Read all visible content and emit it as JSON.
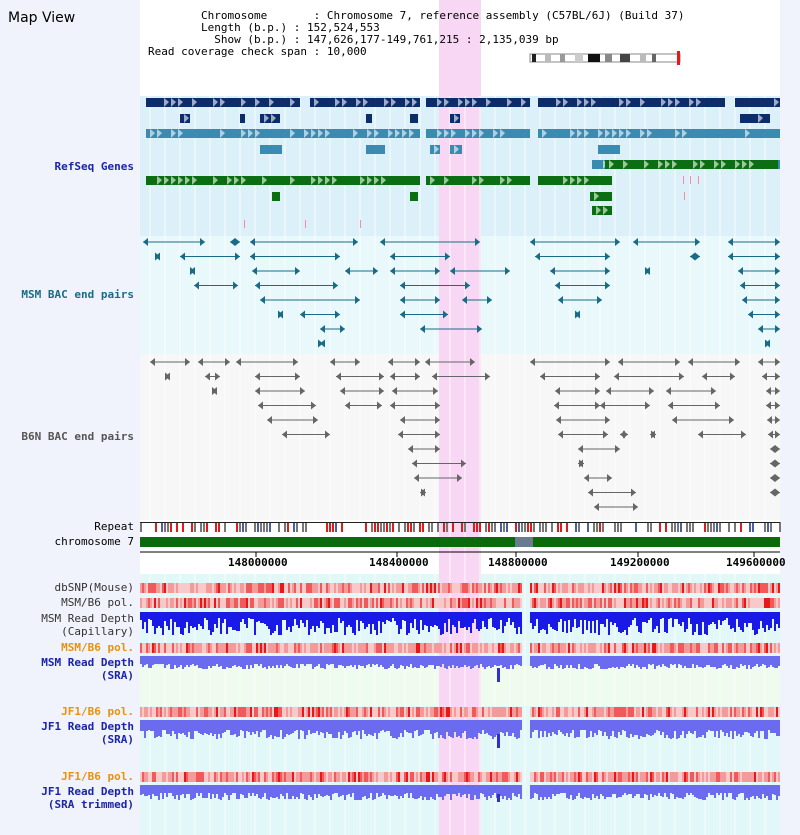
{
  "title": "Map View",
  "info": {
    "chromosome_label": "Chromosome",
    "chromosome_value": "Chromosome 7, reference assembly (C57BL/6J) (Build 37)",
    "length_label": "Length (b.p.)",
    "length_value": "152,524,553",
    "show_label": "Show (b.p.)",
    "show_value": "147,626,177-149,761,215 : 2,135,039 bp",
    "span_label": "Read coverage check span",
    "span_value": "10,000"
  },
  "tracks": {
    "refseq": "RefSeq Genes",
    "msm_bac": "MSM BAC end pairs",
    "b6n_bac": "B6N BAC end pairs",
    "repeat": "Repeat",
    "chromosome": "chromosome 7",
    "dbsnp": "dbSNP(Mouse)",
    "msm_b6_pol_1": "MSM/B6 pol.",
    "msm_depth_cap_1": "MSM Read Depth",
    "msm_depth_cap_2": "(Capillary)",
    "msm_b6_pol_2": "MSM/B6 pol.",
    "msm_depth_sra_1": "MSM Read Depth",
    "msm_depth_sra_2": "(SRA)",
    "jf1_b6_pol_1": "JF1/B6 pol.",
    "jf1_depth_sra_1": "JF1 Read Depth",
    "jf1_depth_sra_2": "(SRA)",
    "jf1_b6_pol_2": "JF1/B6 pol.",
    "jf1_depth_trim_1": "JF1 Read Depth",
    "jf1_depth_trim_2": "(SRA trimmed)"
  },
  "axis_ticks": [
    "148000000",
    "148400000",
    "148800000",
    "149200000",
    "149600000"
  ],
  "colors": {
    "highlight": "#f7d7f4",
    "refseq_dark": "#0b2e6b",
    "refseq_mid": "#3a8bb0",
    "refseq_green": "#0b6e12",
    "chromosome_green": "#0a6b0a",
    "repeat_red": "#e41a1a",
    "depth_blue": "#1a1ae6",
    "depth_light_blue": "#6b6bf0",
    "pol_red": "#f05a5a"
  }
}
